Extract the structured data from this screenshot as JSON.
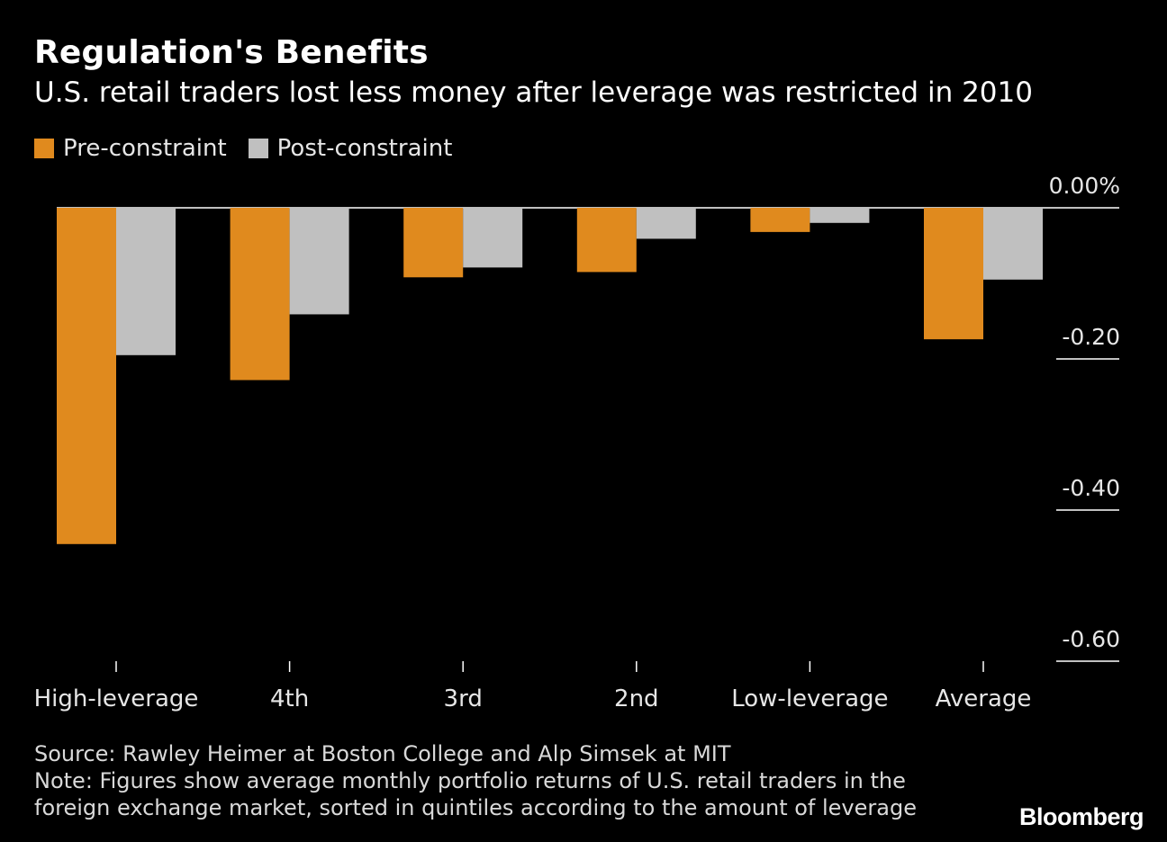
{
  "header": {
    "title": "Regulation's Benefits",
    "subtitle": "U.S. retail traders lost less money after leverage was restricted in 2010"
  },
  "colors": {
    "pre": "#e08a1e",
    "post": "#c0c0c0",
    "background": "#000000"
  },
  "chart_data": {
    "type": "bar",
    "categories": [
      "High-leverage",
      "4th",
      "3rd",
      "2nd",
      "Low-leverage",
      "Average"
    ],
    "series": [
      {
        "name": "Pre-constraint",
        "values": [
          -0.445,
          -0.228,
          -0.092,
          -0.085,
          -0.032,
          -0.174
        ]
      },
      {
        "name": "Post-constraint",
        "values": [
          -0.195,
          -0.141,
          -0.079,
          -0.041,
          -0.02,
          -0.095
        ]
      }
    ],
    "ytick_labels": [
      "0.00%",
      "-0.20",
      "-0.40",
      "-0.60"
    ],
    "yticks": [
      0,
      -0.2,
      -0.4,
      -0.6
    ],
    "ylim": [
      -0.6,
      0
    ],
    "legend_position": "top-left",
    "grid": false
  },
  "footer": {
    "source": "Source: Rawley Heimer at Boston College and Alp Simsek at MIT",
    "note_line1": "Note: Figures show average monthly portfolio returns of U.S. retail traders in the",
    "note_line2": "foreign exchange market, sorted in quintiles according to the amount of leverage"
  },
  "brand": {
    "logo_text": "Bloomberg"
  }
}
